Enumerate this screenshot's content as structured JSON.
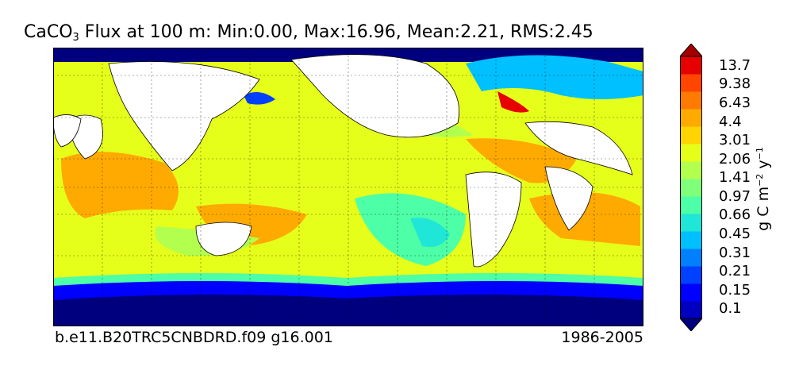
{
  "chart_data": {
    "type": "heatmap",
    "title_main": "CaCO",
    "title_subscript": "3",
    "title_rest": " Flux at 100 m: Min:0.00, Max:16.96, Mean:2.21, RMS:2.45",
    "stats": {
      "min": 0.0,
      "max": 16.96,
      "mean": 2.21,
      "rms": 2.45
    },
    "case_label": "b.e11.B20TRC5CNBDRD.f09 g16.001",
    "period_label": "1986-2005",
    "colorbar": {
      "ticks": [
        "0.1",
        "0.15",
        "0.21",
        "0.31",
        "0.45",
        "0.66",
        "0.97",
        "1.41",
        "2.06",
        "3.01",
        "4.4",
        "6.43",
        "9.38",
        "13.7"
      ],
      "colors": [
        "#00007f",
        "#0000c0",
        "#0000ff",
        "#0040ff",
        "#0080ff",
        "#00c0ff",
        "#1fe6d6",
        "#4dffa6",
        "#80ff7a",
        "#b3ff4d",
        "#e6ff1a",
        "#ffd400",
        "#ffaa00",
        "#ff7a00",
        "#ff4500",
        "#e60000",
        "#a50000"
      ],
      "label_parts": [
        "g C m",
        "−2",
        "  y",
        "−1"
      ],
      "extend": "both"
    },
    "grid": true,
    "land_color": "#ffffff"
  }
}
